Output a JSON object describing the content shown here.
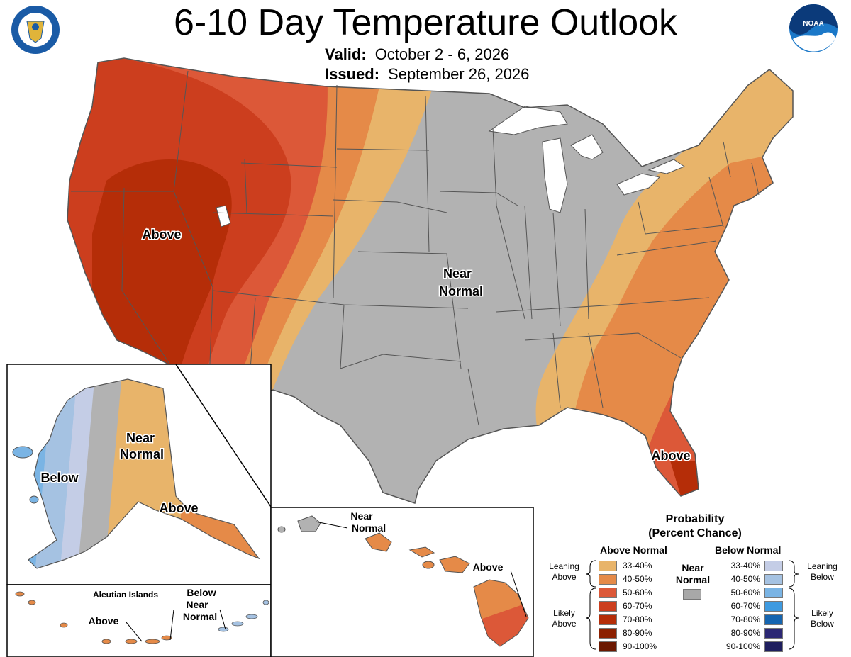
{
  "header": {
    "title": "6-10 Day Temperature Outlook",
    "valid_label": "Valid:",
    "valid_value": "October 2 - 6, 2026",
    "issued_label": "Issued:",
    "issued_value": "September 26, 2026"
  },
  "logos": {
    "left_seal": "department-of-commerce-seal",
    "right_logo": "noaa-logo",
    "right_logo_text": "NOAA"
  },
  "map_labels": {
    "conus_west": "Above",
    "conus_center_1": "Near",
    "conus_center_2": "Normal",
    "florida": "Above",
    "alaska_below": "Below",
    "alaska_near_1": "Near",
    "alaska_near_2": "Normal",
    "alaska_above": "Above",
    "aleutian_title": "Aleutian Islands",
    "aleutian_above": "Above",
    "aleutian_below_1": "Below",
    "aleutian_below_2": "Near",
    "aleutian_below_3": "Normal",
    "hawaii_near_1": "Near",
    "hawaii_near_2": "Normal",
    "hawaii_above": "Above"
  },
  "legend": {
    "title_1": "Probability",
    "title_2": "(Percent Chance)",
    "above_header": "Above Normal",
    "below_header": "Below Normal",
    "near_1": "Near",
    "near_2": "Normal",
    "leaning_above_1": "Leaning",
    "leaning_above_2": "Above",
    "likely_above_1": "Likely",
    "likely_above_2": "Above",
    "leaning_below_1": "Leaning",
    "leaning_below_2": "Below",
    "likely_below_1": "Likely",
    "likely_below_2": "Below",
    "ranges": [
      "33-40%",
      "40-50%",
      "50-60%",
      "60-70%",
      "70-80%",
      "80-90%",
      "90-100%"
    ],
    "above_colors": [
      "#e8b46a",
      "#e58a48",
      "#dc5838",
      "#cc3e1e",
      "#b52d08",
      "#8c2000",
      "#6b1800"
    ],
    "below_colors": [
      "#c4cde6",
      "#a5c2e2",
      "#7ab4e4",
      "#3e9ae0",
      "#1565b0",
      "#2c2874",
      "#1e1e5e"
    ],
    "near_color": "#a8a8a8"
  },
  "colors": {
    "near_normal": "#b2b2b2",
    "water_lakes": "#ffffff",
    "border": "#555555"
  }
}
